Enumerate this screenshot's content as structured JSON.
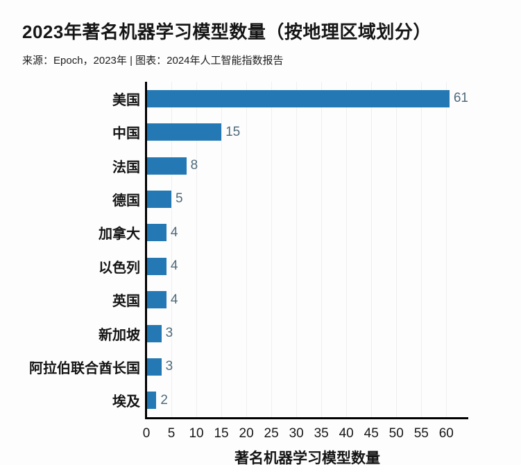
{
  "header": {
    "title": "2023年著名机器学习模型数量（按地理区域划分）",
    "source_line": "来源：Epoch，2023年 | 图表：2024年人工智能指数报告"
  },
  "chart_data": {
    "type": "bar",
    "orientation": "horizontal",
    "title": "2023年著名机器学习模型数量（按地理区域划分）",
    "source": "来源：Epoch，2023年 | 图表：2024年人工智能指数报告",
    "categories": [
      "美国",
      "中国",
      "法国",
      "德国",
      "加拿大",
      "以色列",
      "英国",
      "新加坡",
      "阿拉伯联合酋长国",
      "埃及"
    ],
    "category_names_en": [
      "usa",
      "china",
      "france",
      "germany",
      "canada",
      "israel",
      "uk",
      "singapore",
      "uae",
      "egypt"
    ],
    "values": [
      61,
      15,
      8,
      5,
      4,
      4,
      4,
      3,
      3,
      2
    ],
    "xlabel": "著名机器学习模型数量",
    "ylabel": "",
    "xlim": [
      0,
      64.4
    ],
    "xticks": [
      0,
      5,
      10,
      15,
      20,
      25,
      30,
      35,
      40,
      45,
      50,
      55,
      60
    ],
    "grid": "vertical-light",
    "legend": "none",
    "colors": {
      "bar": "#2478b4",
      "value_label": "#4e6a7a",
      "axis": "#000000",
      "gridline": "#efefef",
      "text": "#161616"
    }
  }
}
